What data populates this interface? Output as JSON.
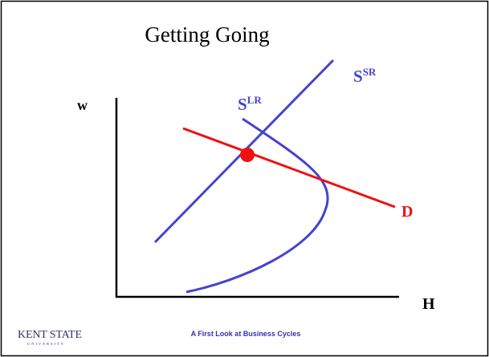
{
  "slide": {
    "title": "Getting Going",
    "axes": {
      "y_label": "w",
      "x_label": "H"
    },
    "curves": {
      "short_run_supply": {
        "base": "S",
        "sup": "SR"
      },
      "long_run_supply": {
        "base": "S",
        "sup": "LR"
      },
      "demand": "D"
    },
    "footer": "A First Look at Business Cycles",
    "logo": {
      "name": "KENT STATE",
      "sub": "UNIVERSITY"
    }
  }
}
